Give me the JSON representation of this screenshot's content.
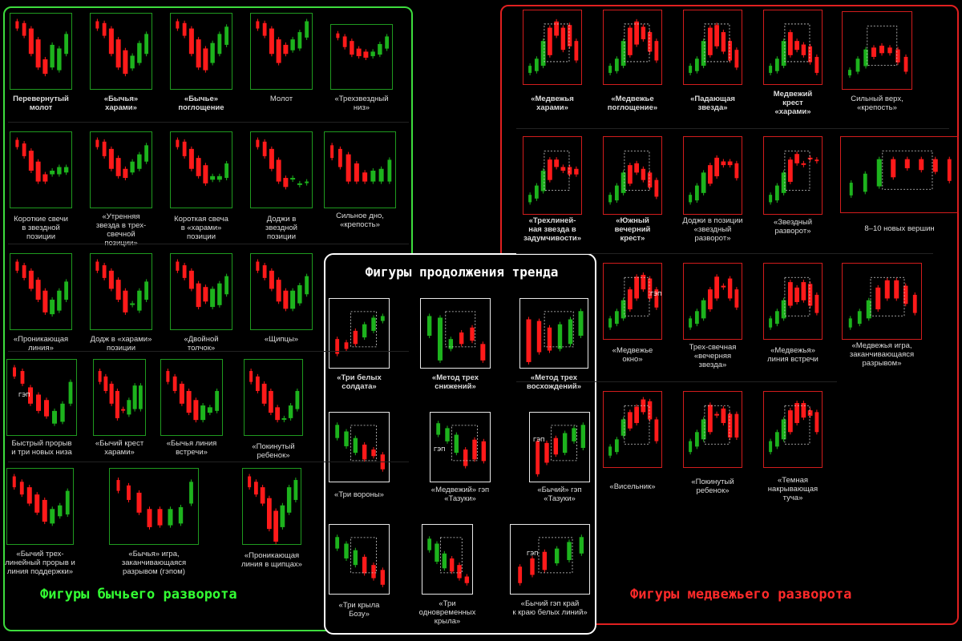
{
  "colors": {
    "bull": "#1db31d",
    "bear": "#ff1a1a",
    "frame_bull": "#1f9a1f",
    "frame_bear": "#d21c1c",
    "frame_cont": "#e8e8e8"
  },
  "bull_title": "Фигуры бычьего разворота",
  "bear_title": "Фигуры медвежьего разворота",
  "cont_title": "Фигуры продолжения тренда",
  "gap_label": "ГЭП",
  "bull": [
    {
      "label": "Перевернутый\nмолот",
      "bold": true,
      "candles": [
        [
          8,
          4,
          12,
          4
        ],
        [
          9,
          6,
          20,
          8
        ],
        [
          9,
          12,
          40,
          10
        ],
        [
          10,
          24,
          55,
          10
        ],
        [
          10,
          46,
          62,
          10
        ],
        [
          9,
          30,
          55,
          9
        ],
        [
          8,
          34,
          58,
          9
        ],
        [
          8,
          18,
          40,
          8
        ]
      ]
    },
    {
      "label": "«Бычья»\nхарами»",
      "bold": true,
      "candles": [
        [
          7,
          4,
          12,
          5
        ],
        [
          9,
          6,
          20,
          8
        ],
        [
          9,
          12,
          40,
          10
        ],
        [
          10,
          24,
          55,
          10
        ],
        [
          10,
          36,
          62,
          10
        ],
        [
          8,
          42,
          56,
          9
        ],
        [
          8,
          28,
          50,
          9
        ],
        [
          9,
          18,
          40,
          8
        ]
      ]
    },
    {
      "label": "«Бычье»\nпоглощение",
      "bold": true,
      "candles": [
        [
          7,
          4,
          12,
          5
        ],
        [
          9,
          6,
          20,
          8
        ],
        [
          9,
          12,
          40,
          10
        ],
        [
          10,
          24,
          55,
          10
        ],
        [
          10,
          34,
          58,
          10
        ],
        [
          9,
          28,
          50,
          9
        ],
        [
          9,
          18,
          40,
          8
        ],
        [
          9,
          10,
          30,
          8
        ]
      ]
    },
    {
      "label": "Молот",
      "bold": false,
      "candles": [
        [
          7,
          4,
          12,
          5
        ],
        [
          9,
          6,
          20,
          8
        ],
        [
          9,
          12,
          40,
          10
        ],
        [
          10,
          24,
          50,
          10
        ],
        [
          9,
          30,
          40,
          10
        ],
        [
          9,
          24,
          36,
          9
        ],
        [
          9,
          16,
          34,
          8
        ],
        [
          9,
          4,
          22,
          8
        ]
      ]
    },
    {
      "label": "«Трехзвездный\nниз»",
      "bold": false,
      "candles": [
        [
          7,
          6,
          12,
          4
        ],
        [
          9,
          10,
          24,
          8
        ],
        [
          9,
          16,
          34,
          9
        ],
        [
          9,
          26,
          36,
          10
        ],
        [
          9,
          30,
          38,
          10
        ],
        [
          8,
          30,
          36,
          9
        ],
        [
          9,
          20,
          34,
          9
        ],
        [
          9,
          10,
          26,
          8
        ]
      ]
    },
    {
      "label": "Короткие свечи\nв звездной\nпозиции",
      "bold": false,
      "candles": [
        [
          8,
          4,
          12,
          4
        ],
        [
          9,
          8,
          22,
          8
        ],
        [
          9,
          16,
          38,
          10
        ],
        [
          10,
          28,
          50,
          10
        ],
        [
          10,
          42,
          50,
          10
        ],
        [
          10,
          38,
          42,
          10
        ],
        [
          9,
          34,
          42,
          9
        ],
        [
          8,
          34,
          40,
          9
        ]
      ]
    },
    {
      "label": "«Утренняя\nзвезда в трех-\nсвечной\nпозиции»",
      "bold": false,
      "candles": [
        [
          7,
          4,
          12,
          5
        ],
        [
          9,
          6,
          22,
          8
        ],
        [
          9,
          14,
          36,
          10
        ],
        [
          10,
          24,
          44,
          10
        ],
        [
          10,
          36,
          46,
          10
        ],
        [
          9,
          28,
          40,
          9
        ],
        [
          9,
          20,
          36,
          9
        ],
        [
          9,
          10,
          28,
          8
        ]
      ]
    },
    {
      "label": "Короткая свеча\nв «харами»\nпозиции",
      "bold": false,
      "candles": [
        [
          7,
          4,
          12,
          5
        ],
        [
          9,
          6,
          22,
          8
        ],
        [
          9,
          14,
          36,
          10
        ],
        [
          10,
          24,
          44,
          10
        ],
        [
          10,
          32,
          52,
          10
        ],
        [
          10,
          44,
          48,
          10
        ],
        [
          10,
          44,
          48,
          10
        ],
        [
          9,
          30,
          46,
          8
        ]
      ]
    },
    {
      "label": "Доджи в\nзвездной\nпозиции",
      "bold": false,
      "candles": [
        [
          7,
          4,
          12,
          5
        ],
        [
          9,
          6,
          22,
          8
        ],
        [
          9,
          14,
          36,
          10
        ],
        [
          10,
          26,
          50,
          10
        ],
        [
          9,
          46,
          56,
          10
        ],
        [
          10,
          46,
          46,
          10
        ],
        [
          10,
          52,
          52,
          10
        ],
        [
          9,
          50,
          50,
          8
        ]
      ]
    },
    {
      "label": "Сильное дно,\n«крепость»",
      "bold": false,
      "candles": [
        [
          7,
          10,
          24,
          4
        ],
        [
          9,
          14,
          34,
          8
        ],
        [
          9,
          20,
          50,
          10
        ],
        [
          10,
          30,
          50,
          10
        ],
        [
          10,
          40,
          50,
          10
        ],
        [
          10,
          38,
          50,
          10
        ],
        [
          10,
          36,
          50,
          10
        ],
        [
          9,
          26,
          50,
          8
        ]
      ]
    },
    {
      "label": "«Проникающая\nлиния»",
      "bold": false,
      "candles": [
        [
          7,
          4,
          14,
          4
        ],
        [
          9,
          8,
          22,
          8
        ],
        [
          9,
          14,
          34,
          10
        ],
        [
          10,
          24,
          46,
          10
        ],
        [
          10,
          36,
          60,
          10
        ],
        [
          10,
          46,
          62,
          10
        ],
        [
          9,
          36,
          58,
          9
        ],
        [
          9,
          26,
          46,
          8
        ]
      ]
    },
    {
      "label": "Додж в «харами»\nпозиции",
      "bold": false,
      "candles": [
        [
          7,
          4,
          14,
          4
        ],
        [
          9,
          8,
          22,
          8
        ],
        [
          9,
          14,
          34,
          10
        ],
        [
          10,
          24,
          46,
          10
        ],
        [
          10,
          36,
          60,
          10
        ],
        [
          10,
          50,
          50,
          10
        ],
        [
          9,
          36,
          58,
          9
        ],
        [
          9,
          26,
          46,
          8
        ]
      ]
    },
    {
      "label": "«Двойной\nтолчок»",
      "bold": false,
      "candles": [
        [
          7,
          4,
          14,
          4
        ],
        [
          9,
          8,
          22,
          8
        ],
        [
          9,
          14,
          34,
          10
        ],
        [
          10,
          28,
          54,
          10
        ],
        [
          10,
          32,
          48,
          10
        ],
        [
          10,
          34,
          54,
          10
        ],
        [
          9,
          28,
          52,
          9
        ],
        [
          9,
          20,
          40,
          8
        ]
      ]
    },
    {
      "label": "«Щипцы»",
      "bold": false,
      "candles": [
        [
          7,
          4,
          14,
          4
        ],
        [
          9,
          8,
          22,
          8
        ],
        [
          9,
          14,
          34,
          10
        ],
        [
          10,
          24,
          48,
          10
        ],
        [
          10,
          36,
          56,
          10
        ],
        [
          10,
          36,
          56,
          10
        ],
        [
          9,
          30,
          50,
          9
        ],
        [
          9,
          20,
          40,
          8
        ]
      ]
    },
    {
      "label": "Быстрый прорыв\nи три новых низа",
      "bold": false,
      "candles": [
        [
          7,
          4,
          14,
          4
        ],
        [
          9,
          8,
          22,
          8
        ],
        [
          9,
          26,
          44,
          10
        ],
        [
          10,
          34,
          52,
          10
        ],
        [
          10,
          40,
          58,
          10
        ],
        [
          10,
          52,
          66,
          10
        ],
        [
          9,
          44,
          64,
          9
        ],
        [
          9,
          20,
          44,
          8
        ]
      ]
    },
    {
      "label": "«Бычий крест\nхарами»",
      "bold": false,
      "candles": [
        [
          7,
          8,
          20,
          4
        ],
        [
          9,
          14,
          30,
          8
        ],
        [
          9,
          22,
          44,
          10
        ],
        [
          10,
          30,
          60,
          10
        ],
        [
          10,
          50,
          50,
          10
        ],
        [
          10,
          40,
          56,
          10
        ],
        [
          9,
          24,
          50,
          9
        ],
        [
          9,
          24,
          50,
          8
        ]
      ]
    },
    {
      "label": "«Бычья линия\nвстречи»",
      "bold": false,
      "candles": [
        [
          7,
          8,
          20,
          4
        ],
        [
          9,
          14,
          30,
          8
        ],
        [
          9,
          22,
          44,
          10
        ],
        [
          10,
          30,
          54,
          10
        ],
        [
          10,
          40,
          62,
          10
        ],
        [
          10,
          46,
          62,
          10
        ],
        [
          10,
          48,
          54,
          10
        ],
        [
          9,
          30,
          52,
          8
        ]
      ]
    },
    {
      "label": "«Покинутый\nребенок»",
      "bold": false,
      "candles": [
        [
          7,
          8,
          20,
          4
        ],
        [
          9,
          14,
          30,
          8
        ],
        [
          9,
          22,
          44,
          10
        ],
        [
          10,
          30,
          54,
          10
        ],
        [
          10,
          48,
          62,
          10
        ],
        [
          10,
          60,
          60,
          10
        ],
        [
          9,
          46,
          60,
          9
        ],
        [
          9,
          30,
          50,
          8
        ]
      ]
    },
    {
      "label": "«Бычий трех-\nлинейный прорыв и\nлиния поддержки»",
      "bold": false,
      "candles": [
        [
          7,
          4,
          16,
          4
        ],
        [
          9,
          10,
          24,
          8
        ],
        [
          9,
          16,
          34,
          10
        ],
        [
          10,
          24,
          44,
          10
        ],
        [
          10,
          30,
          54,
          10
        ],
        [
          10,
          40,
          56,
          10
        ],
        [
          9,
          36,
          48,
          9
        ],
        [
          9,
          20,
          46,
          8
        ]
      ]
    },
    {
      "label": "«Бычья» игра,\nзаканчивающаяся\nразрывом (гэпом)",
      "bold": false,
      "candles": [
        [
          7,
          8,
          20,
          4
        ],
        [
          9,
          14,
          30,
          8
        ],
        [
          9,
          22,
          44,
          10
        ],
        [
          10,
          40,
          60,
          10
        ],
        [
          10,
          40,
          58,
          10
        ],
        [
          10,
          40,
          58,
          10
        ],
        [
          9,
          38,
          56,
          9
        ],
        [
          9,
          10,
          34,
          8
        ]
      ]
    },
    {
      "label": "«Проникающая\nлиния в щипцах»",
      "bold": false,
      "candles": [
        [
          7,
          4,
          16,
          4
        ],
        [
          9,
          10,
          24,
          8
        ],
        [
          9,
          16,
          34,
          10
        ],
        [
          10,
          28,
          62,
          10
        ],
        [
          10,
          42,
          76,
          10
        ],
        [
          10,
          36,
          60,
          10
        ],
        [
          9,
          16,
          44,
          9
        ],
        [
          9,
          8,
          30,
          8
        ]
      ]
    }
  ],
  "bear": [
    {
      "label": "«Медвежья\nхарами»",
      "bold": true
    },
    {
      "label": "«Медвежье\nпоглощение»",
      "bold": true
    },
    {
      "label": "«Падающая\nзвезда»",
      "bold": true
    },
    {
      "label": "Медвежий\nкрест\n«харами»",
      "bold": true
    },
    {
      "label": "Сильный верх,\n«крепость»",
      "bold": false
    },
    {
      "label": "«Трехлиней-\nная звезда в\nзадумчивости»",
      "bold": true
    },
    {
      "label": "«Южный\nвечерний\nкрест»",
      "bold": true
    },
    {
      "label": "Доджи в позиции\n«звездный\nразворот»",
      "bold": false
    },
    {
      "label": "«Звездный\nразворот»",
      "bold": false
    },
    {
      "label": "8–10 новых вершин",
      "bold": false
    },
    {
      "label": "«Медвежье\nокно»",
      "bold": false
    },
    {
      "label": "Трех-свечная\n«вечерняя\nзвезда»",
      "bold": false
    },
    {
      "label": "«Медвежья»\nлиния встречи",
      "bold": false
    },
    {
      "label": "«Медвежья игра,\nзаканчивающаяся\nразрывом»",
      "bold": false
    },
    {
      "label": "«Висельник»",
      "bold": false
    },
    {
      "label": "«Покинутый\nребенок»",
      "bold": false
    },
    {
      "label": "«Темная\nнакрывающая\nтуча»",
      "bold": false
    }
  ],
  "cont": [
    {
      "label": "«Три белых\nсолдата»",
      "bold": true
    },
    {
      "label": "«Метод трех\nснижений»",
      "bold": true
    },
    {
      "label": "«Метод трех\nвосхождений»",
      "bold": true
    },
    {
      "label": "«Три вороны»",
      "bold": false
    },
    {
      "label": "«Медвежий» гэп\n«Тазуки»",
      "bold": false
    },
    {
      "label": "«Бычий» гэп\n«Тазуки»",
      "bold": false
    },
    {
      "label": "«Три крыла\nБозу»",
      "bold": false
    },
    {
      "label": "«Три\nодновременных\nкрыла»",
      "bold": false
    },
    {
      "label": "«Бычий гэп край\nк краю белых линий»",
      "bold": false
    }
  ]
}
